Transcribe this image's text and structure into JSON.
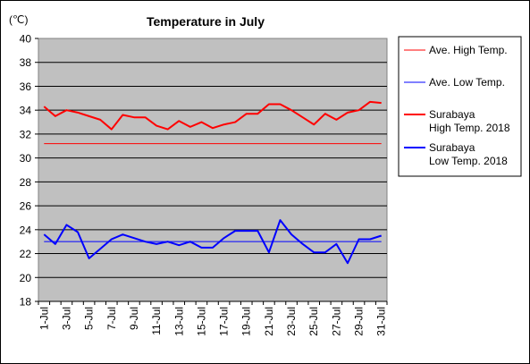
{
  "chart_data": {
    "type": "line",
    "title": "Temperature in July",
    "ylabel": "(℃)",
    "ylim": [
      18,
      40
    ],
    "yticks": [
      18,
      20,
      22,
      24,
      26,
      28,
      30,
      32,
      34,
      36,
      38,
      40
    ],
    "grid": true,
    "legend_position": "right",
    "categories": [
      "1-Jul",
      "2-Jul",
      "3-Jul",
      "4-Jul",
      "5-Jul",
      "6-Jul",
      "7-Jul",
      "8-Jul",
      "9-Jul",
      "10-Jul",
      "11-Jul",
      "12-Jul",
      "13-Jul",
      "14-Jul",
      "15-Jul",
      "16-Jul",
      "17-Jul",
      "18-Jul",
      "19-Jul",
      "20-Jul",
      "21-Jul",
      "22-Jul",
      "23-Jul",
      "24-Jul",
      "25-Jul",
      "26-Jul",
      "27-Jul",
      "28-Jul",
      "29-Jul",
      "30-Jul",
      "31-Jul"
    ],
    "xtick_labels": [
      "1-Jul",
      "3-Jul",
      "5-Jul",
      "7-Jul",
      "9-Jul",
      "11-Jul",
      "13-Jul",
      "15-Jul",
      "17-Jul",
      "19-Jul",
      "21-Jul",
      "23-Jul",
      "25-Jul",
      "27-Jul",
      "29-Jul",
      "31-Jul"
    ],
    "series": [
      {
        "name": "Ave. High Temp.",
        "color": "#ff0000",
        "width": 1,
        "values": [
          31.2,
          31.2,
          31.2,
          31.2,
          31.2,
          31.2,
          31.2,
          31.2,
          31.2,
          31.2,
          31.2,
          31.2,
          31.2,
          31.2,
          31.2,
          31.2,
          31.2,
          31.2,
          31.2,
          31.2,
          31.2,
          31.2,
          31.2,
          31.2,
          31.2,
          31.2,
          31.2,
          31.2,
          31.2,
          31.2,
          31.2
        ]
      },
      {
        "name": "Ave. Low Temp.",
        "color": "#0000ff",
        "width": 1,
        "values": [
          23.0,
          23.0,
          23.0,
          23.0,
          23.0,
          23.0,
          23.0,
          23.0,
          23.0,
          23.0,
          23.0,
          23.0,
          23.0,
          23.0,
          23.0,
          23.0,
          23.0,
          23.0,
          23.0,
          23.0,
          23.0,
          23.0,
          23.0,
          23.0,
          23.0,
          23.0,
          23.0,
          23.0,
          23.0,
          23.0,
          23.0
        ]
      },
      {
        "name": "Surabaya High Temp. 2018",
        "color": "#ff0000",
        "width": 2,
        "values": [
          34.3,
          33.5,
          34.0,
          33.8,
          33.5,
          33.2,
          32.4,
          33.6,
          33.4,
          33.4,
          32.7,
          32.4,
          33.1,
          32.6,
          33.0,
          32.5,
          32.8,
          33.0,
          33.7,
          33.7,
          34.5,
          34.5,
          34.0,
          33.4,
          32.8,
          33.7,
          33.2,
          33.8,
          34.0,
          34.7,
          34.6
        ]
      },
      {
        "name": "Surabaya Low Temp. 2018",
        "color": "#0000ff",
        "width": 2,
        "values": [
          23.6,
          22.8,
          24.4,
          23.8,
          21.6,
          22.4,
          23.2,
          23.6,
          23.3,
          23.0,
          22.8,
          23.0,
          22.7,
          23.0,
          22.5,
          22.5,
          23.3,
          23.9,
          23.9,
          23.9,
          22.1,
          24.8,
          23.6,
          22.8,
          22.1,
          22.1,
          22.8,
          21.2,
          23.2,
          23.2,
          23.5
        ]
      }
    ]
  },
  "legend": [
    {
      "lines": [
        "Ave. High Temp."
      ]
    },
    {
      "lines": [
        "Ave. Low Temp."
      ]
    },
    {
      "lines": [
        "Surabaya",
        "High Temp. 2018"
      ]
    },
    {
      "lines": [
        "Surabaya",
        "Low Temp. 2018"
      ]
    }
  ]
}
